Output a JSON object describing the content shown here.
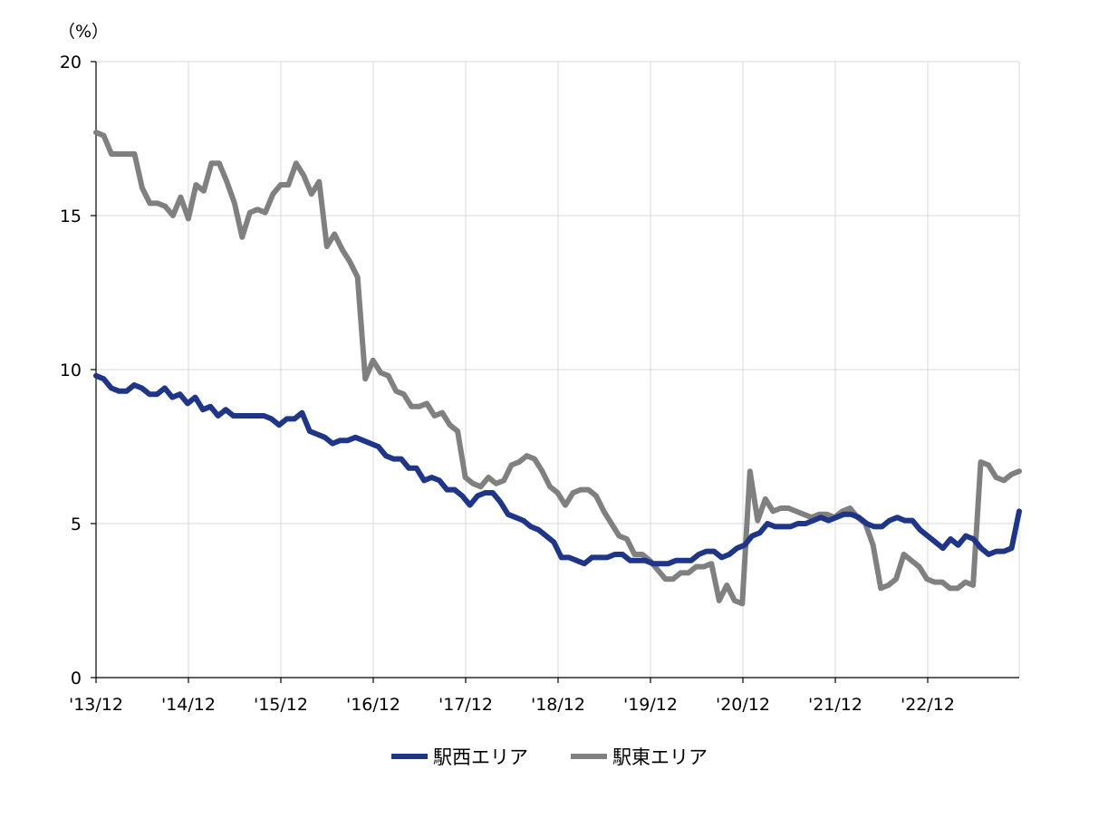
{
  "chart_data": {
    "type": "line",
    "unit_label": "（%）",
    "ylim": [
      0,
      20
    ],
    "y_ticks": [
      "0",
      "5",
      "10",
      "15",
      "20"
    ],
    "x_ticks": [
      "'13/12",
      "'14/12",
      "'15/12",
      "'16/12",
      "'17/12",
      "'18/12",
      "'19/12",
      "'20/12",
      "'21/12",
      "'22/12"
    ],
    "grid": true,
    "legend_position": "bottom",
    "colors": {
      "grid": "#d9d9d9",
      "axis": "#000000"
    },
    "series": [
      {
        "name": "駅西エリア",
        "color": "#1f3587",
        "values": [
          9.8,
          9.7,
          9.4,
          9.3,
          9.3,
          9.5,
          9.4,
          9.2,
          9.2,
          9.4,
          9.1,
          9.2,
          8.9,
          9.1,
          8.7,
          8.8,
          8.5,
          8.7,
          8.5,
          8.5,
          8.5,
          8.5,
          8.5,
          8.4,
          8.2,
          8.4,
          8.4,
          8.6,
          8.0,
          7.9,
          7.8,
          7.6,
          7.7,
          7.7,
          7.8,
          7.7,
          7.6,
          7.5,
          7.2,
          7.1,
          7.1,
          6.8,
          6.8,
          6.4,
          6.5,
          6.4,
          6.1,
          6.1,
          5.9,
          5.6,
          5.9,
          6.0,
          6.0,
          5.7,
          5.3,
          5.2,
          5.1,
          4.9,
          4.8,
          4.6,
          4.4,
          3.9,
          3.9,
          3.8,
          3.7,
          3.9,
          3.9,
          3.9,
          4.0,
          4.0,
          3.8,
          3.8,
          3.8,
          3.7,
          3.7,
          3.7,
          3.8,
          3.8,
          3.8,
          4.0,
          4.1,
          4.1,
          3.9,
          4.0,
          4.2,
          4.3,
          4.6,
          4.7,
          5.0,
          4.9,
          4.9,
          4.9,
          5.0,
          5.0,
          5.1,
          5.2,
          5.1,
          5.2,
          5.3,
          5.3,
          5.2,
          5.0,
          4.9,
          4.9,
          5.1,
          5.2,
          5.1,
          5.1,
          4.8,
          4.6,
          4.4,
          4.2,
          4.5,
          4.3,
          4.6,
          4.5,
          4.2,
          4.0,
          4.1,
          4.1,
          4.2,
          5.4
        ]
      },
      {
        "name": "駅東エリア",
        "color": "#808080",
        "values": [
          17.7,
          17.6,
          17.0,
          17.0,
          17.0,
          17.0,
          15.9,
          15.4,
          15.4,
          15.3,
          15.0,
          15.6,
          14.9,
          16.0,
          15.8,
          16.7,
          16.7,
          16.1,
          15.4,
          14.3,
          15.1,
          15.2,
          15.1,
          15.7,
          16.0,
          16.0,
          16.7,
          16.3,
          15.7,
          16.1,
          14.0,
          14.4,
          13.9,
          13.5,
          13.0,
          9.7,
          10.3,
          9.9,
          9.8,
          9.3,
          9.2,
          8.8,
          8.8,
          8.9,
          8.5,
          8.6,
          8.2,
          8.0,
          6.5,
          6.3,
          6.2,
          6.5,
          6.3,
          6.4,
          6.9,
          7.0,
          7.2,
          7.1,
          6.7,
          6.2,
          6.0,
          5.6,
          6.0,
          6.1,
          6.1,
          5.9,
          5.4,
          5.0,
          4.6,
          4.5,
          4.0,
          4.0,
          3.8,
          3.5,
          3.2,
          3.2,
          3.4,
          3.4,
          3.6,
          3.6,
          3.7,
          2.5,
          3.0,
          2.5,
          2.4,
          6.7,
          5.1,
          5.8,
          5.4,
          5.5,
          5.5,
          5.4,
          5.3,
          5.2,
          5.3,
          5.3,
          5.2,
          5.4,
          5.5,
          5.2,
          5.0,
          4.3,
          2.9,
          3.0,
          3.2,
          4.0,
          3.8,
          3.6,
          3.2,
          3.1,
          3.1,
          2.9,
          2.9,
          3.1,
          3.0,
          7.0,
          6.9,
          6.5,
          6.4,
          6.6,
          6.7
        ]
      }
    ]
  }
}
